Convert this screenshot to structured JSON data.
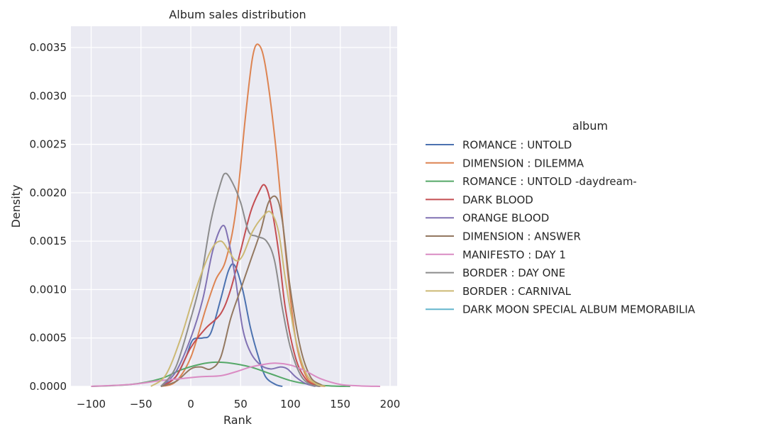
{
  "chart_data": {
    "type": "line",
    "title": "Album sales distribution",
    "xlabel": "Rank",
    "ylabel": "Density",
    "xlim": [
      -110,
      205
    ],
    "ylim": [
      0,
      0.0037
    ],
    "xticks": [
      -100,
      -50,
      0,
      50,
      100,
      150,
      200
    ],
    "xtick_labels": [
      "−100",
      "−50",
      "0",
      "50",
      "100",
      "150",
      "200"
    ],
    "yticks": [
      0,
      0.0005,
      0.001,
      0.0015,
      0.002,
      0.0025,
      0.003,
      0.0035
    ],
    "ytick_labels": [
      "0.0000",
      "0.0005",
      "0.0010",
      "0.0015",
      "0.0020",
      "0.0025",
      "0.0030",
      "0.0035"
    ],
    "grid": true,
    "legend": {
      "title": "album",
      "placement": "right"
    },
    "series": [
      {
        "name": "ROMANCE : UNTOLD",
        "color": "#4c72b0",
        "points": [
          [
            -30,
            0
          ],
          [
            -15,
            0.0001
          ],
          [
            -5,
            0.0003
          ],
          [
            2,
            0.00048
          ],
          [
            12,
            0.0005
          ],
          [
            20,
            0.00055
          ],
          [
            30,
            0.0009
          ],
          [
            38,
            0.0012
          ],
          [
            44,
            0.00125
          ],
          [
            52,
            0.001
          ],
          [
            60,
            0.0006
          ],
          [
            68,
            0.0003
          ],
          [
            75,
            0.0001
          ],
          [
            85,
            2e-05
          ],
          [
            92,
            0
          ]
        ]
      },
      {
        "name": "DIMENSION : DILEMMA",
        "color": "#dd8452",
        "points": [
          [
            -30,
            0
          ],
          [
            -15,
            5e-05
          ],
          [
            0,
            0.0003
          ],
          [
            15,
            0.0008
          ],
          [
            25,
            0.0011
          ],
          [
            35,
            0.0013
          ],
          [
            45,
            0.0018
          ],
          [
            55,
            0.0028
          ],
          [
            62,
            0.0034
          ],
          [
            68,
            0.00353
          ],
          [
            75,
            0.0033
          ],
          [
            85,
            0.0025
          ],
          [
            95,
            0.0014
          ],
          [
            105,
            0.0005
          ],
          [
            115,
            0.00012
          ],
          [
            125,
            2e-05
          ],
          [
            135,
            0
          ]
        ]
      },
      {
        "name": "ROMANCE : UNTOLD -daydream-",
        "color": "#55a868",
        "points": [
          [
            -100,
            0
          ],
          [
            -60,
            2e-05
          ],
          [
            -30,
            8e-05
          ],
          [
            -10,
            0.00017
          ],
          [
            10,
            0.00023
          ],
          [
            25,
            0.00025
          ],
          [
            40,
            0.00024
          ],
          [
            60,
            0.0002
          ],
          [
            80,
            0.00013
          ],
          [
            100,
            6e-05
          ],
          [
            120,
            2e-05
          ],
          [
            140,
            5e-06
          ],
          [
            160,
            0
          ]
        ]
      },
      {
        "name": "DARK BLOOD",
        "color": "#c44e52",
        "points": [
          [
            -30,
            0
          ],
          [
            -15,
            0.0001
          ],
          [
            0,
            0.0004
          ],
          [
            15,
            0.0006
          ],
          [
            30,
            0.00075
          ],
          [
            40,
            0.001
          ],
          [
            50,
            0.0014
          ],
          [
            60,
            0.0018
          ],
          [
            68,
            0.002
          ],
          [
            74,
            0.00208
          ],
          [
            80,
            0.0019
          ],
          [
            88,
            0.0014
          ],
          [
            95,
            0.0008
          ],
          [
            105,
            0.0003
          ],
          [
            115,
            8e-05
          ],
          [
            125,
            1e-05
          ],
          [
            130,
            0
          ]
        ]
      },
      {
        "name": "ORANGE BLOOD",
        "color": "#8172b3",
        "points": [
          [
            -30,
            0
          ],
          [
            -15,
            0.00015
          ],
          [
            0,
            0.0005
          ],
          [
            12,
            0.0009
          ],
          [
            22,
            0.0014
          ],
          [
            32,
            0.00166
          ],
          [
            38,
            0.0015
          ],
          [
            45,
            0.0011
          ],
          [
            52,
            0.0006
          ],
          [
            60,
            0.00035
          ],
          [
            70,
            0.00022
          ],
          [
            80,
            0.00018
          ],
          [
            90,
            0.0002
          ],
          [
            97,
            0.00018
          ],
          [
            105,
            0.0001
          ],
          [
            115,
            3e-05
          ],
          [
            125,
            0
          ]
        ]
      },
      {
        "name": "DIMENSION : ANSWER",
        "color": "#937860",
        "points": [
          [
            -30,
            0
          ],
          [
            -15,
            5e-05
          ],
          [
            0,
            0.00018
          ],
          [
            10,
            0.0002
          ],
          [
            20,
            0.00018
          ],
          [
            30,
            0.0003
          ],
          [
            40,
            0.0007
          ],
          [
            50,
            0.001
          ],
          [
            60,
            0.0013
          ],
          [
            70,
            0.0016
          ],
          [
            78,
            0.0019
          ],
          [
            86,
            0.00195
          ],
          [
            92,
            0.0017
          ],
          [
            100,
            0.001
          ],
          [
            110,
            0.0004
          ],
          [
            120,
            0.0001
          ],
          [
            130,
            2e-05
          ],
          [
            135,
            0
          ]
        ]
      },
      {
        "name": "MANIFESTO : DAY 1",
        "color": "#da8bc3",
        "points": [
          [
            -100,
            0
          ],
          [
            -60,
            2e-05
          ],
          [
            -30,
            6e-05
          ],
          [
            -10,
            8e-05
          ],
          [
            10,
            0.0001
          ],
          [
            30,
            0.00011
          ],
          [
            45,
            0.00015
          ],
          [
            60,
            0.0002
          ],
          [
            75,
            0.00023
          ],
          [
            85,
            0.00024
          ],
          [
            100,
            0.00022
          ],
          [
            115,
            0.00016
          ],
          [
            130,
            8e-05
          ],
          [
            150,
            2e-05
          ],
          [
            170,
            5e-06
          ],
          [
            190,
            0
          ]
        ]
      },
      {
        "name": "BORDER : DAY ONE",
        "color": "#8c8c8c",
        "points": [
          [
            -30,
            0
          ],
          [
            -15,
            0.0002
          ],
          [
            0,
            0.0007
          ],
          [
            10,
            0.0011
          ],
          [
            20,
            0.0017
          ],
          [
            30,
            0.0021
          ],
          [
            35,
            0.0022
          ],
          [
            42,
            0.0021
          ],
          [
            50,
            0.0019
          ],
          [
            58,
            0.0016
          ],
          [
            66,
            0.00155
          ],
          [
            76,
            0.0015
          ],
          [
            84,
            0.0013
          ],
          [
            92,
            0.0008
          ],
          [
            100,
            0.0004
          ],
          [
            110,
            0.00012
          ],
          [
            120,
            2e-05
          ],
          [
            130,
            0
          ]
        ]
      },
      {
        "name": "BORDER : CARNIVAL",
        "color": "#ccb974",
        "points": [
          [
            -40,
            0
          ],
          [
            -25,
            0.00012
          ],
          [
            -10,
            0.0005
          ],
          [
            5,
            0.001
          ],
          [
            20,
            0.0014
          ],
          [
            30,
            0.0015
          ],
          [
            38,
            0.0014
          ],
          [
            45,
            0.0013
          ],
          [
            52,
            0.00135
          ],
          [
            62,
            0.0016
          ],
          [
            72,
            0.00175
          ],
          [
            80,
            0.0018
          ],
          [
            88,
            0.0016
          ],
          [
            95,
            0.0011
          ],
          [
            105,
            0.0005
          ],
          [
            115,
            0.00015
          ],
          [
            125,
            3e-05
          ],
          [
            135,
            0
          ]
        ]
      },
      {
        "name": "DARK MOON SPECIAL ALBUM  MEMORABILIA",
        "color": "#64b5cd",
        "points": []
      }
    ]
  }
}
